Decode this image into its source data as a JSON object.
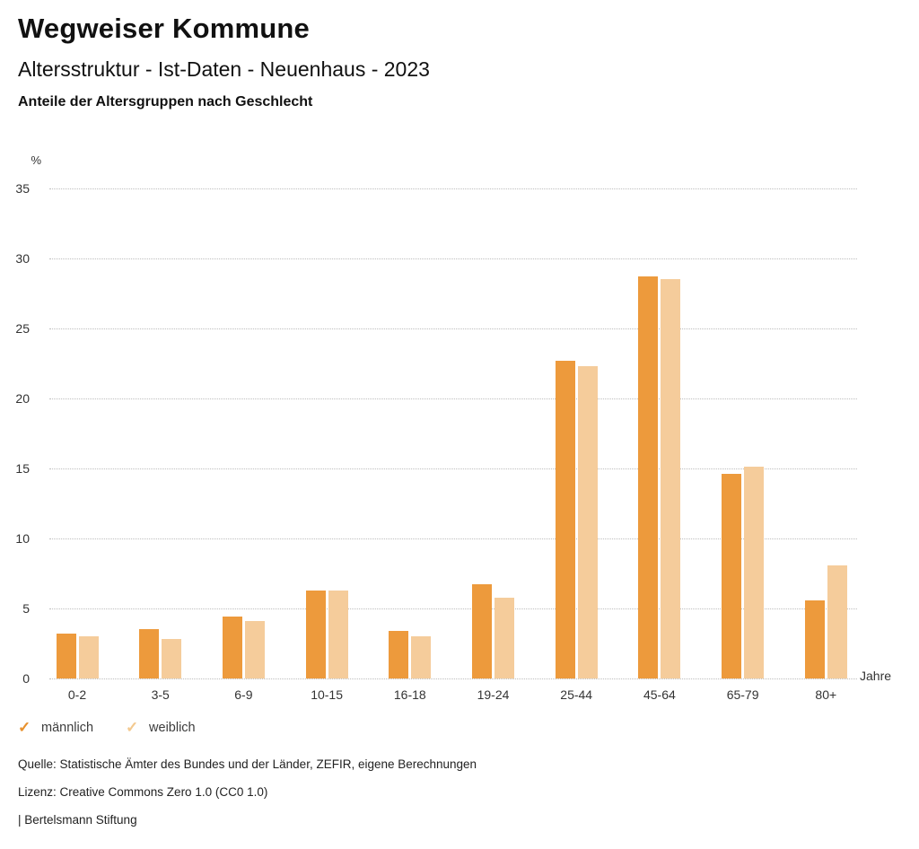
{
  "header": {
    "title": "Wegweiser Kommune",
    "subtitle": "Altersstruktur - Ist-Daten - Neuenhaus - 2023",
    "description": "Anteile der Altersgruppen nach Geschlecht"
  },
  "chart_data": {
    "type": "bar",
    "categories": [
      "0-2",
      "3-5",
      "6-9",
      "10-15",
      "16-18",
      "19-24",
      "25-44",
      "45-64",
      "65-79",
      "80+"
    ],
    "series": [
      {
        "name": "männlich",
        "color": "#ED9A3C",
        "values": [
          3.2,
          3.5,
          4.4,
          6.3,
          3.4,
          6.7,
          22.7,
          28.7,
          14.6,
          5.6
        ]
      },
      {
        "name": "weiblich",
        "color": "#F5CC9B",
        "values": [
          3.0,
          2.8,
          4.1,
          6.3,
          3.0,
          5.8,
          22.3,
          28.5,
          15.1,
          8.1
        ]
      }
    ],
    "title": "Anteile der Altersgruppen nach Geschlecht",
    "xlabel": "Jahre",
    "ylabel": "%",
    "ylim": [
      0,
      35
    ],
    "ytick_step": 5,
    "grid": "horizontal-dotted",
    "legend_position": "bottom-left"
  },
  "legend": {
    "items": [
      {
        "label": "männlich",
        "icon": "check-icon",
        "color": "#E8912D",
        "checked": true
      },
      {
        "label": "weiblich",
        "icon": "check-icon",
        "color": "#F3C98F",
        "checked": true
      }
    ]
  },
  "footer": {
    "source": "Quelle: Statistische Ämter des Bundes und der Länder, ZEFIR, eigene Berechnungen",
    "license": "Lizenz: Creative Commons Zero 1.0 (CC0 1.0)",
    "attribution": "| Bertelsmann Stiftung"
  },
  "colors": {
    "maennlich_bar": "#ED9A3C",
    "weiblich_bar": "#F5CC9B",
    "gridline": "#bdbdbd",
    "text": "#333333"
  }
}
